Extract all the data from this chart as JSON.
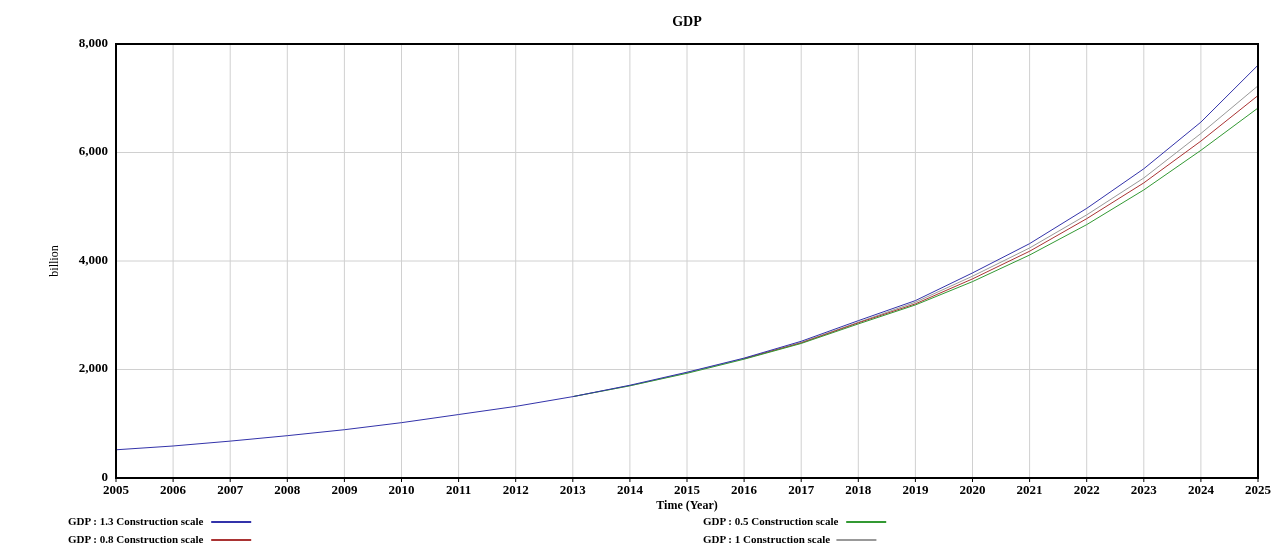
{
  "chart_data": {
    "type": "line",
    "title": "GDP",
    "xlabel": "Time (Year)",
    "ylabel": "billion",
    "x": [
      2005,
      2006,
      2007,
      2008,
      2009,
      2010,
      2011,
      2012,
      2013,
      2014,
      2015,
      2016,
      2017,
      2018,
      2019,
      2020,
      2021,
      2022,
      2023,
      2024,
      2025
    ],
    "xlim": [
      2005,
      2025
    ],
    "xticks": [
      2005,
      2006,
      2007,
      2008,
      2009,
      2010,
      2011,
      2012,
      2013,
      2014,
      2015,
      2016,
      2017,
      2018,
      2019,
      2020,
      2021,
      2022,
      2023,
      2024,
      2025
    ],
    "ylim": [
      0,
      8000
    ],
    "yticks": [
      {
        "value": 0,
        "label": "0"
      },
      {
        "value": 2000,
        "label": "2,000"
      },
      {
        "value": 4000,
        "label": "4,000"
      },
      {
        "value": 6000,
        "label": "6,000"
      },
      {
        "value": 8000,
        "label": "8,000"
      }
    ],
    "grid": true,
    "legend": "bottom",
    "marker": "none",
    "line_style": "solid",
    "series": [
      {
        "name": "GDP : 1.3 Construction scale",
        "color": "#3333aa",
        "values": [
          520,
          590,
          680,
          780,
          890,
          1020,
          1170,
          1320,
          1500,
          1710,
          1950,
          2210,
          2520,
          2900,
          3270,
          3780,
          4320,
          4970,
          5700,
          6560,
          7610
        ]
      },
      {
        "name": "GDP : 0.5 Construction scale",
        "color": "#339933",
        "values": [
          null,
          null,
          null,
          null,
          null,
          null,
          null,
          null,
          1500,
          1700,
          1930,
          2190,
          2480,
          2840,
          3190,
          3620,
          4110,
          4670,
          5310,
          6040,
          6820
        ]
      },
      {
        "name": "GDP : 0.8 Construction scale",
        "color": "#aa3333",
        "values": [
          null,
          null,
          null,
          null,
          null,
          null,
          null,
          null,
          null,
          null,
          null,
          2200,
          2490,
          2860,
          3210,
          3670,
          4180,
          4780,
          5440,
          6210,
          7050
        ]
      },
      {
        "name": "GDP : 1 Construction scale",
        "color": "#999999",
        "values": [
          null,
          null,
          null,
          null,
          null,
          null,
          null,
          null,
          1500,
          1700,
          1940,
          2200,
          2500,
          2870,
          3240,
          3720,
          4240,
          4850,
          5530,
          6350,
          7230
        ]
      }
    ]
  }
}
